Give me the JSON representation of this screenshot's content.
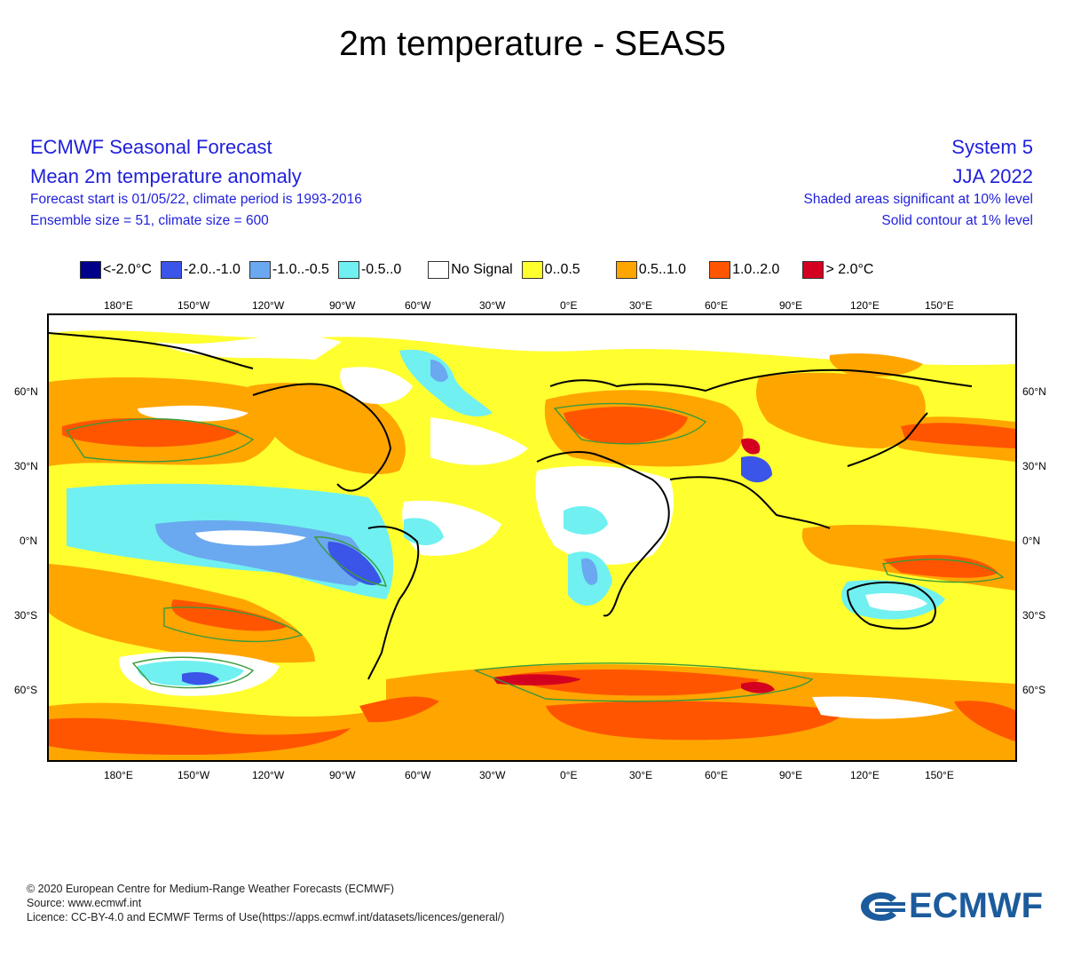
{
  "title": "2m temperature - SEAS5",
  "header": {
    "left_line1": "ECMWF Seasonal Forecast",
    "left_line2": "Mean 2m temperature anomaly",
    "left_line3": "Forecast start is 01/05/22, climate period is 1993-2016",
    "left_line4": "Ensemble size = 51, climate size = 600",
    "right_line1": "System 5",
    "right_line2": "JJA 2022",
    "right_line3": "Shaded areas significant at 10% level",
    "right_line4": "Solid contour at 1% level"
  },
  "legend": [
    {
      "label": "<-2.0°C",
      "color": "#00008b"
    },
    {
      "label": "-2.0..-1.0",
      "color": "#3a55e8"
    },
    {
      "label": "-1.0..-0.5",
      "color": "#6aa8f0"
    },
    {
      "label": "-0.5..0",
      "color": "#70f0f0"
    },
    {
      "label": "No Signal",
      "color": "#ffffff"
    },
    {
      "label": "0..0.5",
      "color": "#ffff30"
    },
    {
      "label": "0.5..1.0",
      "color": "#ffa500"
    },
    {
      "label": "1.0..2.0",
      "color": "#ff5500"
    },
    {
      "label": "> 2.0°C",
      "color": "#d40020"
    }
  ],
  "lon_labels": [
    "180°E",
    "150°W",
    "120°W",
    "90°W",
    "60°W",
    "30°W",
    "0°E",
    "30°E",
    "60°E",
    "90°E",
    "120°E",
    "150°E"
  ],
  "lat_labels": [
    "60°N",
    "30°N",
    "0°N",
    "30°S",
    "60°S"
  ],
  "footer": {
    "line1": "© 2020 European Centre for Medium-Range Weather Forecasts (ECMWF)",
    "line2": "Source: www.ecmwf.int",
    "line3": "Licence: CC-BY-4.0 and ECMWF Terms of Use(https://apps.ecmwf.int/datasets/licences/general/)"
  },
  "logo_text": "ECMWF"
}
